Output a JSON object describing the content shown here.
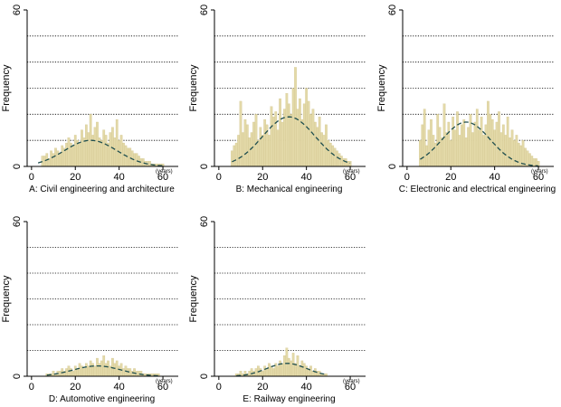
{
  "figure": {
    "background": "#ffffff",
    "bar_color": "#e3d9a8",
    "bar_edge_color": "#cfc28a",
    "curve_color": "#1f4e4e",
    "grid_style": "dotted"
  },
  "chart_data": [
    {
      "type": "bar",
      "title": "A: Civil engineering and architecture",
      "xlabel": "(years)",
      "ylabel": "Frequency",
      "x_ticks": [
        0,
        20,
        40,
        60
      ],
      "y_ticks": [
        0,
        60
      ],
      "xlim": [
        -2,
        67
      ],
      "ylim": [
        0,
        60
      ],
      "grid_y": [
        10,
        20,
        30,
        40,
        50
      ],
      "bar_width": 1,
      "bars": {
        "x": [
          5,
          6,
          7,
          8,
          9,
          10,
          11,
          12,
          13,
          14,
          15,
          16,
          17,
          18,
          19,
          20,
          21,
          22,
          23,
          24,
          25,
          26,
          27,
          28,
          29,
          30,
          31,
          32,
          33,
          34,
          35,
          36,
          37,
          38,
          39,
          40,
          41,
          42,
          43,
          44,
          45,
          46,
          47,
          48,
          49,
          50,
          51,
          52,
          53,
          54,
          55,
          56,
          57,
          58,
          59,
          60
        ],
        "values": [
          4,
          4,
          5,
          3,
          6,
          5,
          7,
          6,
          5,
          8,
          7,
          9,
          11,
          9,
          8,
          12,
          10,
          9,
          14,
          11,
          16,
          13,
          20,
          12,
          15,
          17,
          11,
          10,
          14,
          12,
          9,
          13,
          15,
          11,
          18,
          10,
          12,
          9,
          8,
          7,
          7,
          6,
          5,
          5,
          4,
          3,
          3,
          2,
          2,
          2,
          1,
          1,
          1,
          1,
          1,
          1
        ]
      },
      "normal_curve": {
        "mean": 27,
        "sd": 12,
        "peak": 10,
        "x_range": [
          3,
          60
        ]
      }
    },
    {
      "type": "bar",
      "title": "B: Mechanical engineering",
      "xlabel": "(years)",
      "ylabel": "Frequency",
      "x_ticks": [
        0,
        20,
        40,
        60
      ],
      "y_ticks": [
        0,
        60
      ],
      "xlim": [
        -2,
        67
      ],
      "ylim": [
        0,
        60
      ],
      "grid_y": [
        10,
        20,
        30,
        40,
        50
      ],
      "bar_width": 1,
      "bars": {
        "x": [
          6,
          7,
          8,
          9,
          10,
          11,
          12,
          13,
          14,
          15,
          16,
          17,
          18,
          19,
          20,
          21,
          22,
          23,
          24,
          25,
          26,
          27,
          28,
          29,
          30,
          31,
          32,
          33,
          34,
          35,
          36,
          37,
          38,
          39,
          40,
          41,
          42,
          43,
          44,
          45,
          46,
          47,
          48,
          49,
          50,
          51,
          52,
          53,
          54,
          55,
          56,
          57,
          58,
          59,
          60
        ],
        "values": [
          6,
          8,
          9,
          12,
          25,
          13,
          18,
          16,
          11,
          13,
          17,
          20,
          10,
          15,
          12,
          18,
          16,
          12,
          23,
          19,
          21,
          14,
          26,
          17,
          22,
          28,
          24,
          20,
          30,
          38,
          22,
          26,
          18,
          24,
          30,
          25,
          20,
          22,
          17,
          15,
          19,
          13,
          12,
          16,
          10,
          9,
          8,
          7,
          6,
          5,
          4,
          3,
          3,
          2,
          2
        ]
      },
      "normal_curve": {
        "mean": 32,
        "sd": 12,
        "peak": 19,
        "x_range": [
          6,
          60
        ]
      }
    },
    {
      "type": "bar",
      "title": "C: Electronic and electrical engineering",
      "xlabel": "(years)",
      "ylabel": "Frequency",
      "x_ticks": [
        0,
        20,
        40,
        60
      ],
      "y_ticks": [
        0,
        60
      ],
      "xlim": [
        -2,
        67
      ],
      "ylim": [
        0,
        60
      ],
      "grid_y": [
        10,
        20,
        30,
        40,
        50
      ],
      "bar_width": 1,
      "bars": {
        "x": [
          6,
          7,
          8,
          9,
          10,
          11,
          12,
          13,
          14,
          15,
          16,
          17,
          18,
          19,
          20,
          21,
          22,
          23,
          24,
          25,
          26,
          27,
          28,
          29,
          30,
          31,
          32,
          33,
          34,
          35,
          36,
          37,
          38,
          39,
          40,
          41,
          42,
          43,
          44,
          45,
          46,
          47,
          48,
          49,
          50,
          51,
          52,
          53,
          54,
          55,
          56,
          57,
          58,
          59,
          60
        ],
        "values": [
          10,
          16,
          22,
          8,
          14,
          18,
          12,
          9,
          20,
          15,
          11,
          24,
          13,
          17,
          10,
          19,
          14,
          21,
          12,
          16,
          18,
          11,
          15,
          20,
          13,
          17,
          22,
          14,
          19,
          12,
          16,
          25,
          20,
          18,
          14,
          17,
          21,
          13,
          16,
          12,
          19,
          11,
          14,
          10,
          12,
          9,
          8,
          10,
          7,
          6,
          5,
          4,
          3,
          3,
          2
        ]
      },
      "normal_curve": {
        "mean": 27,
        "sd": 11,
        "peak": 17,
        "x_range": [
          6,
          60
        ]
      }
    },
    {
      "type": "bar",
      "title": "D: Automotive engineering",
      "xlabel": "(years)",
      "ylabel": "Frequency",
      "x_ticks": [
        0,
        20,
        40,
        60
      ],
      "y_ticks": [
        0,
        60
      ],
      "xlim": [
        -2,
        67
      ],
      "ylim": [
        0,
        60
      ],
      "grid_y": [
        10,
        20,
        30,
        40,
        50
      ],
      "bar_width": 1,
      "bars": {
        "x": [
          7,
          8,
          9,
          10,
          11,
          12,
          13,
          14,
          15,
          16,
          17,
          18,
          19,
          20,
          21,
          22,
          23,
          24,
          25,
          26,
          27,
          28,
          29,
          30,
          31,
          32,
          33,
          34,
          35,
          36,
          37,
          38,
          39,
          40,
          41,
          42,
          43,
          44,
          45,
          46,
          47,
          48,
          49,
          50,
          51,
          52,
          53,
          54,
          55,
          56,
          57,
          58
        ],
        "values": [
          1,
          1,
          1,
          2,
          1,
          2,
          2,
          3,
          2,
          3,
          4,
          3,
          2,
          4,
          3,
          5,
          4,
          3,
          5,
          4,
          6,
          5,
          4,
          7,
          5,
          6,
          8,
          5,
          6,
          4,
          7,
          5,
          6,
          4,
          5,
          3,
          4,
          3,
          3,
          2,
          3,
          2,
          2,
          2,
          1,
          1,
          1,
          1,
          1,
          1,
          1,
          1
        ]
      },
      "normal_curve": {
        "mean": 30,
        "sd": 11,
        "peak": 4,
        "x_range": [
          7,
          58
        ]
      }
    },
    {
      "type": "bar",
      "title": "E: Railway engineering",
      "xlabel": "(years)",
      "ylabel": "Frequency",
      "x_ticks": [
        0,
        20,
        40,
        60
      ],
      "y_ticks": [
        0,
        60
      ],
      "xlim": [
        -2,
        67
      ],
      "ylim": [
        0,
        60
      ],
      "grid_y": [
        10,
        20,
        30,
        40,
        50
      ],
      "bar_width": 1,
      "bars": {
        "x": [
          8,
          9,
          10,
          11,
          12,
          13,
          14,
          15,
          16,
          17,
          18,
          19,
          20,
          21,
          22,
          23,
          24,
          25,
          26,
          27,
          28,
          29,
          30,
          31,
          32,
          33,
          34,
          35,
          36,
          37,
          38,
          39,
          40,
          41,
          42,
          43,
          44,
          45,
          46,
          47,
          48,
          49
        ],
        "values": [
          1,
          1,
          2,
          1,
          2,
          1,
          2,
          3,
          2,
          3,
          4,
          3,
          2,
          4,
          3,
          5,
          4,
          3,
          5,
          4,
          6,
          5,
          8,
          11,
          7,
          6,
          9,
          5,
          8,
          4,
          6,
          5,
          4,
          3,
          4,
          2,
          3,
          2,
          2,
          1,
          1,
          1
        ]
      },
      "normal_curve": {
        "mean": 31,
        "sd": 9,
        "peak": 5,
        "x_range": [
          8,
          49
        ]
      }
    }
  ]
}
